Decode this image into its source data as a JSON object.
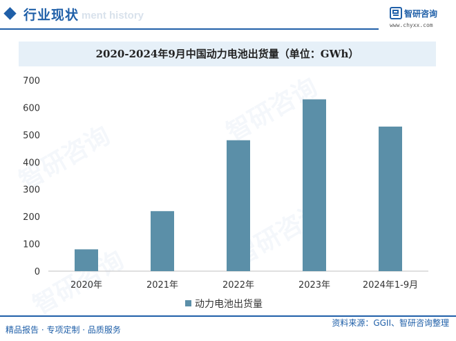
{
  "header": {
    "section_title": "行业现状",
    "bg_text": "ment history",
    "logo_name": "智研咨询",
    "logo_url": "www.chyxx.com"
  },
  "watermark_text": "智研咨询",
  "chart_data": {
    "type": "bar",
    "title": "2020-2024年9月中国动力电池出货量（单位：GWh）",
    "categories": [
      "2020年",
      "2021年",
      "2022年",
      "2023年",
      "2024年1-9月"
    ],
    "series": [
      {
        "name": "动力电池出货量",
        "values": [
          80,
          220,
          480,
          630,
          530
        ]
      }
    ],
    "ylim": [
      0,
      700
    ],
    "yticks": [
      0,
      100,
      200,
      300,
      400,
      500,
      600,
      700
    ],
    "xlabel": "",
    "ylabel": "",
    "grid": false,
    "legend": "bottom-center",
    "bar_color": "#5b8fa8"
  },
  "footer": {
    "left": "精品报告 · 专项定制 · 品质服务",
    "right": "资料来源：GGII、智研咨询整理"
  }
}
